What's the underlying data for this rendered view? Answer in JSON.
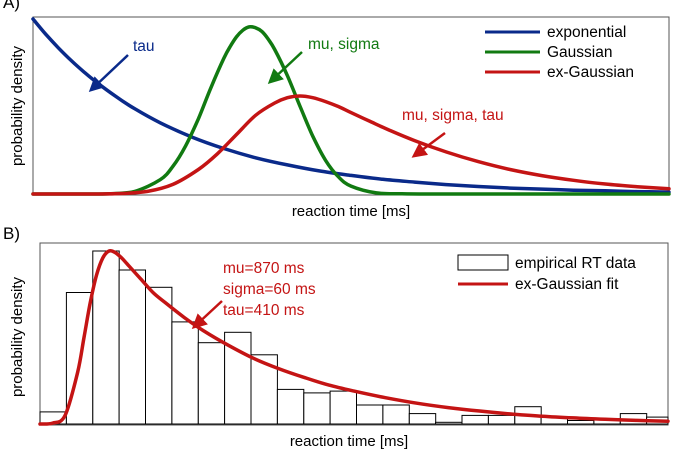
{
  "chart_data": [
    {
      "panel_label": "A)",
      "type": "line",
      "xlabel": "reaction time [ms]",
      "ylabel": "probability density",
      "xlim": [
        0,
        100
      ],
      "ylim": [
        0,
        1
      ],
      "grid": false,
      "legend_position": "top-right",
      "legend": [
        "exponential",
        "Gaussian",
        "ex-Gaussian"
      ],
      "series": [
        {
          "name": "exponential",
          "color": "#0a2a8a",
          "x": [
            0,
            2,
            4,
            6,
            8,
            10,
            13,
            16,
            20,
            25,
            30,
            35,
            40,
            45,
            50,
            55,
            60,
            65,
            70,
            75,
            80,
            85,
            90,
            95,
            100
          ],
          "y": [
            1.0,
            0.913,
            0.835,
            0.763,
            0.698,
            0.638,
            0.558,
            0.487,
            0.407,
            0.325,
            0.26,
            0.207,
            0.166,
            0.132,
            0.106,
            0.084,
            0.068,
            0.054,
            0.043,
            0.034,
            0.028,
            0.022,
            0.018,
            0.014,
            0.011
          ]
        },
        {
          "name": "Gaussian",
          "color": "#117a11",
          "x": [
            0,
            8,
            12,
            16,
            20,
            22,
            24,
            26,
            28,
            30,
            31,
            32,
            33,
            34,
            35,
            36,
            37,
            38,
            40,
            42,
            44,
            46,
            48,
            50,
            54,
            58,
            62,
            70,
            80,
            90,
            100
          ],
          "y": [
            0.0,
            0.0,
            0.002,
            0.015,
            0.082,
            0.158,
            0.275,
            0.43,
            0.61,
            0.775,
            0.843,
            0.898,
            0.936,
            0.955,
            0.95,
            0.928,
            0.884,
            0.826,
            0.676,
            0.5,
            0.33,
            0.192,
            0.099,
            0.045,
            0.006,
            0.001,
            0.0,
            0.0,
            0.0,
            0.0,
            0.0
          ]
        },
        {
          "name": "ex-Gaussian",
          "color": "#c41414",
          "x": [
            0,
            10,
            14,
            18,
            22,
            26,
            29,
            32,
            35,
            38,
            40,
            42,
            44,
            46,
            48,
            50,
            53,
            56,
            60,
            65,
            70,
            75,
            80,
            85,
            90,
            95,
            100
          ],
          "y": [
            0.0,
            0.0,
            0.003,
            0.015,
            0.055,
            0.14,
            0.23,
            0.34,
            0.45,
            0.52,
            0.55,
            0.56,
            0.55,
            0.528,
            0.5,
            0.465,
            0.415,
            0.365,
            0.305,
            0.24,
            0.185,
            0.14,
            0.105,
            0.078,
            0.057,
            0.042,
            0.03
          ]
        }
      ],
      "annotations": [
        {
          "text": "tau",
          "color": "#0a2a8a"
        },
        {
          "text": "mu, sigma",
          "color": "#117a11"
        },
        {
          "text": "mu, sigma, tau",
          "color": "#c41414"
        }
      ]
    },
    {
      "panel_label": "B)",
      "type": "bar",
      "xlabel": "reaction time [ms]",
      "ylabel": "probability density",
      "xlim": [
        0,
        100
      ],
      "ylim": [
        0,
        1
      ],
      "grid": false,
      "legend_position": "top-right",
      "legend": [
        "empirical RT data",
        "ex-Gaussian fit"
      ],
      "histogram": {
        "name": "empirical RT data",
        "bin_edges": [
          0,
          4.2,
          8.4,
          12.6,
          16.8,
          21.0,
          25.2,
          29.4,
          33.6,
          37.8,
          42.0,
          46.2,
          50.4,
          54.6,
          58.8,
          63.0,
          67.2,
          71.4,
          75.6,
          79.8,
          84.0,
          88.2,
          92.4,
          96.6,
          100
        ],
        "values": [
          0.07,
          0.76,
          1.0,
          0.89,
          0.79,
          0.59,
          0.47,
          0.53,
          0.4,
          0.2,
          0.18,
          0.19,
          0.11,
          0.11,
          0.06,
          0.01,
          0.05,
          0.05,
          0.1,
          0.04,
          0.02,
          0.03,
          0.06,
          0.04
        ]
      },
      "series": [
        {
          "name": "ex-Gaussian fit",
          "color": "#c41414",
          "x": [
            0,
            2,
            4,
            6,
            7,
            8,
            9,
            10,
            11,
            12,
            13,
            14,
            16,
            18,
            20,
            23,
            26,
            30,
            34,
            38,
            42,
            46,
            50,
            55,
            60,
            65,
            70,
            75,
            80,
            85,
            90,
            95,
            100
          ],
          "y": [
            0.0,
            0.005,
            0.05,
            0.3,
            0.5,
            0.7,
            0.86,
            0.96,
            1.0,
            0.99,
            0.96,
            0.92,
            0.84,
            0.76,
            0.7,
            0.615,
            0.54,
            0.455,
            0.38,
            0.32,
            0.27,
            0.225,
            0.19,
            0.152,
            0.12,
            0.095,
            0.075,
            0.058,
            0.045,
            0.035,
            0.027,
            0.021,
            0.016
          ]
        }
      ],
      "annotations": [
        {
          "text": "mu=870 ms",
          "color": "#c41414"
        },
        {
          "text": "sigma=60 ms",
          "color": "#c41414"
        },
        {
          "text": "tau=410 ms",
          "color": "#c41414"
        }
      ]
    }
  ]
}
